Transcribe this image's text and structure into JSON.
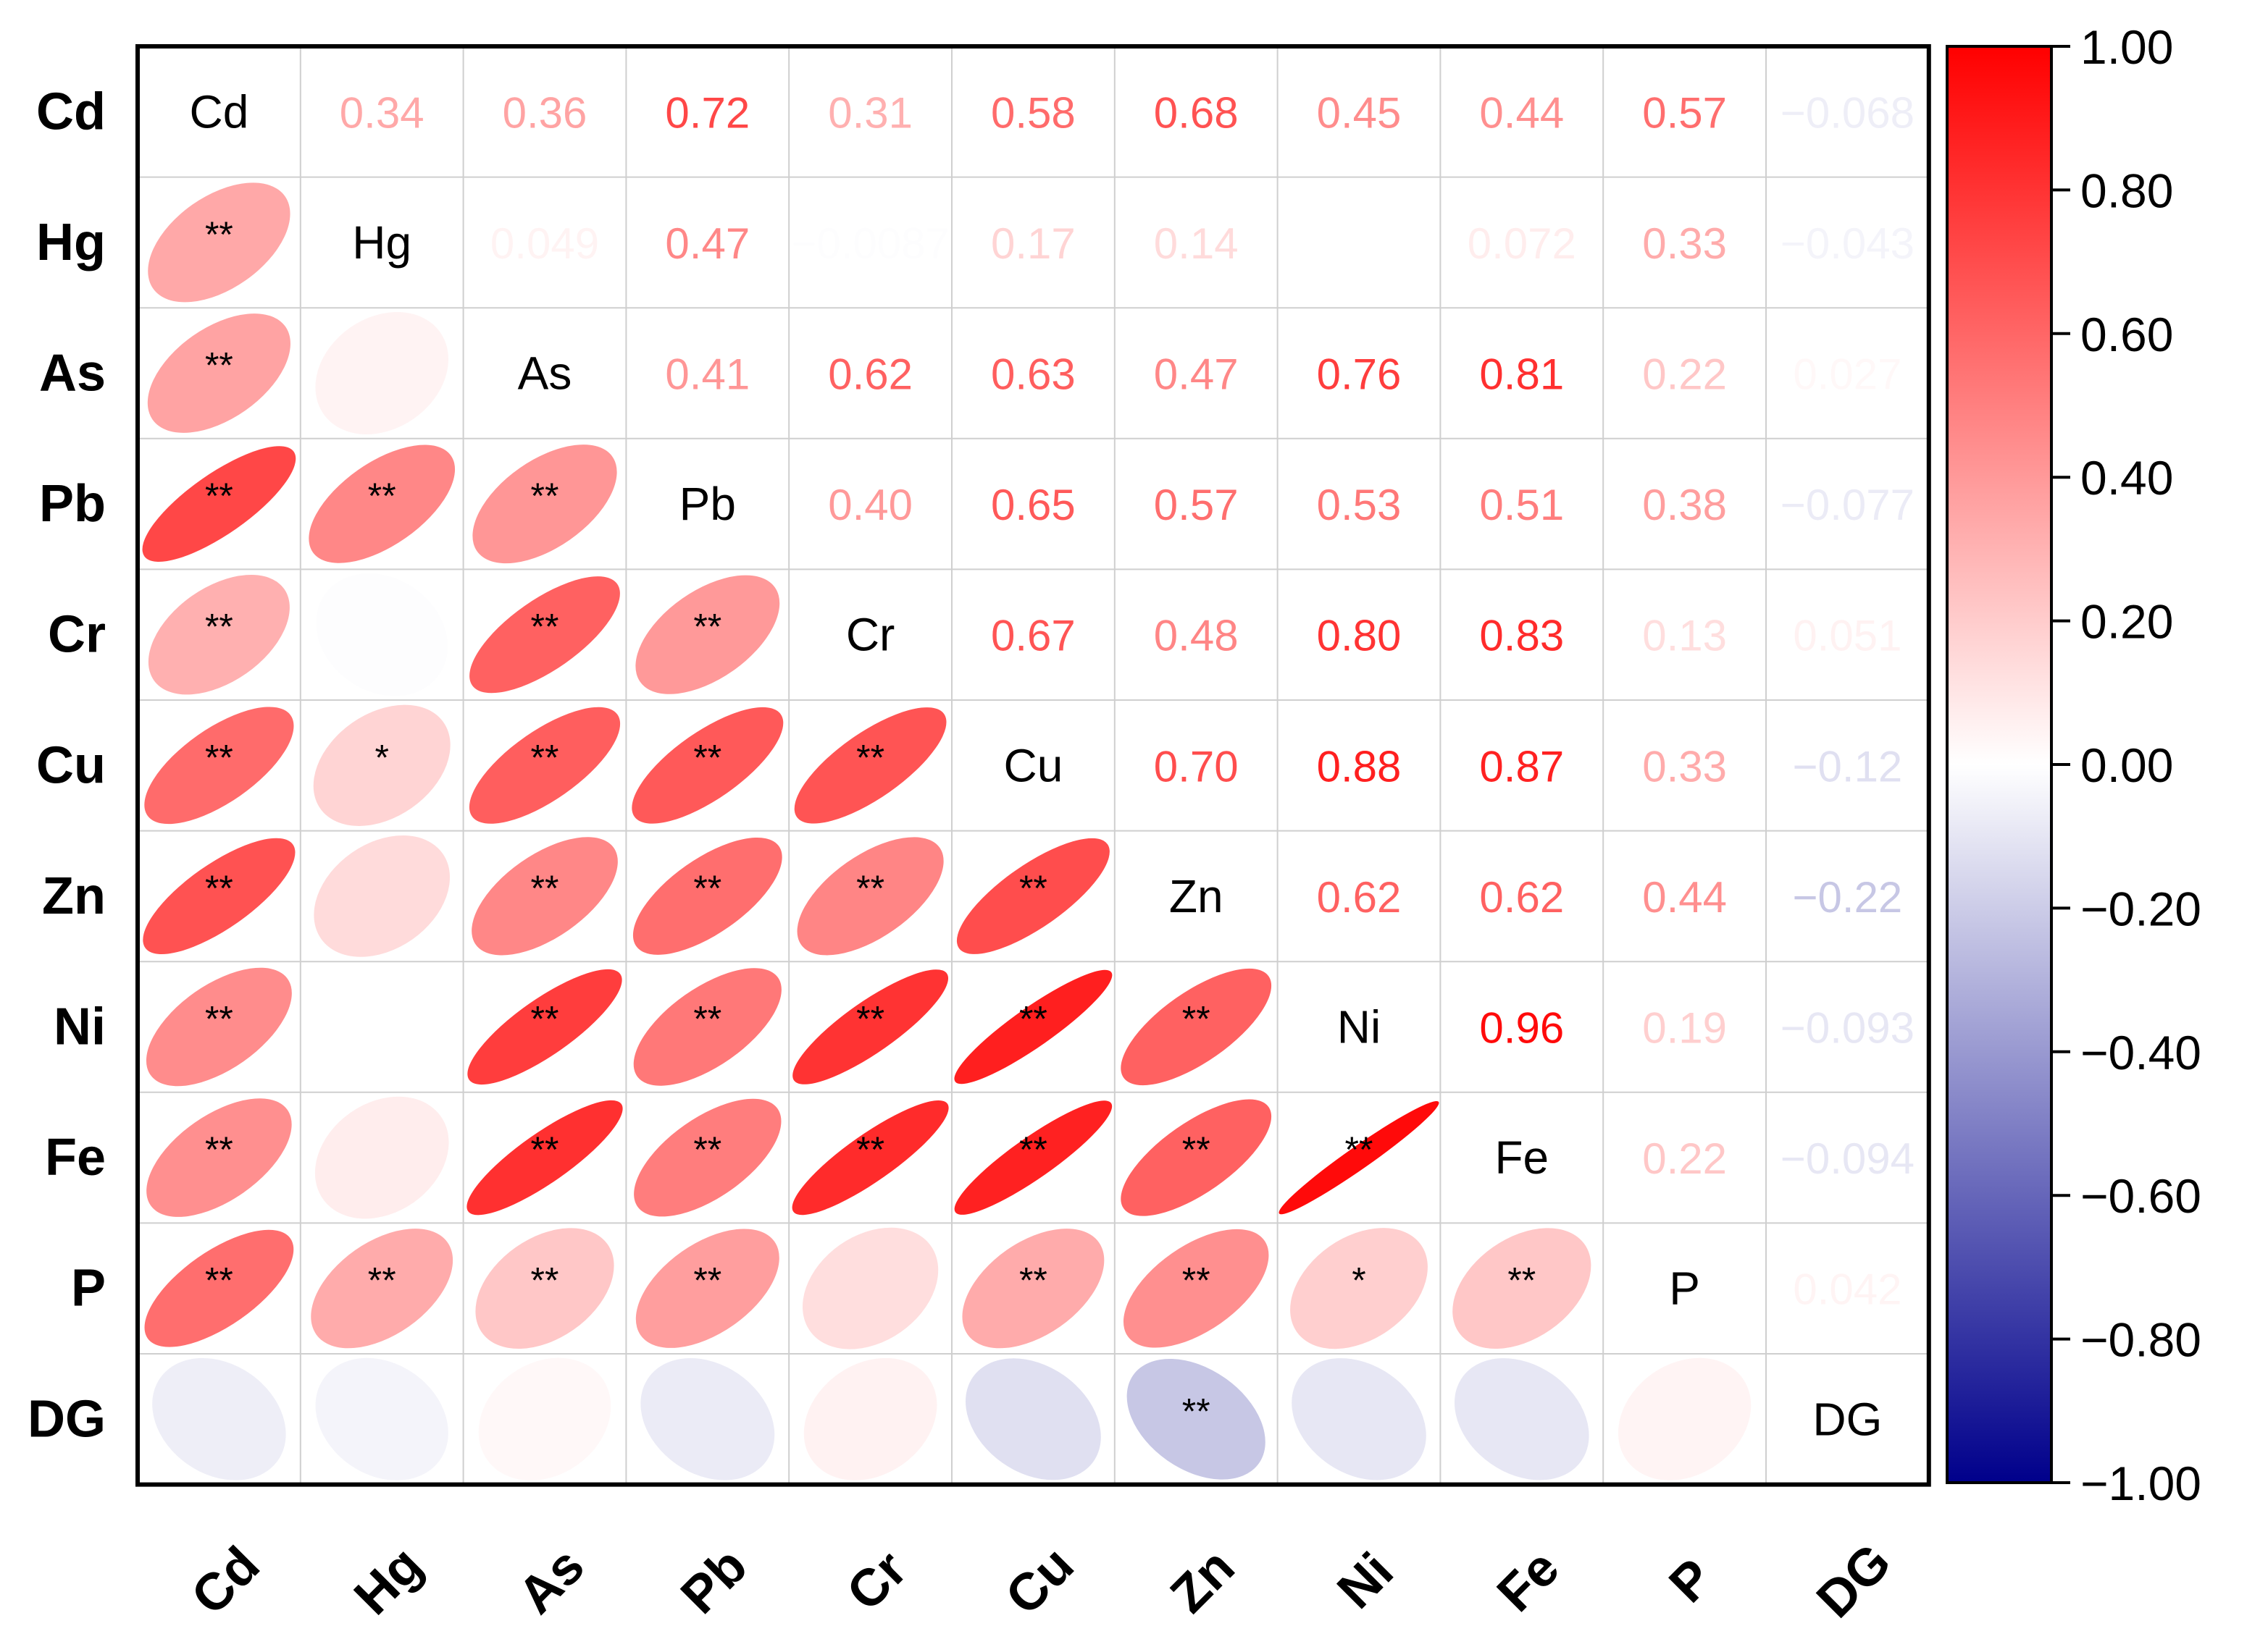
{
  "chart_data": {
    "type": "heatmap",
    "variables": [
      "Cd",
      "Hg",
      "As",
      "Pb",
      "Cr",
      "Cu",
      "Zn",
      "Ni",
      "Fe",
      "P",
      "DG"
    ],
    "matrix": [
      [
        1,
        0.34,
        0.36,
        0.72,
        0.31,
        0.58,
        0.68,
        0.45,
        0.44,
        0.57,
        -0.068
      ],
      [
        0.34,
        1,
        0.049,
        0.47,
        -0.0087,
        0.17,
        0.14,
        0,
        0.072,
        0.33,
        -0.043
      ],
      [
        0.36,
        0.049,
        1,
        0.41,
        0.62,
        0.63,
        0.47,
        0.76,
        0.81,
        0.22,
        0.027
      ],
      [
        0.72,
        0.47,
        0.41,
        1,
        0.4,
        0.65,
        0.57,
        0.53,
        0.51,
        0.38,
        -0.077
      ],
      [
        0.31,
        -0.0087,
        0.62,
        0.4,
        1,
        0.67,
        0.48,
        0.8,
        0.83,
        0.13,
        0.051
      ],
      [
        0.58,
        0.17,
        0.63,
        0.65,
        0.67,
        1,
        0.7,
        0.88,
        0.87,
        0.33,
        -0.12
      ],
      [
        0.68,
        0.14,
        0.47,
        0.57,
        0.48,
        0.7,
        1,
        0.62,
        0.62,
        0.44,
        -0.22
      ],
      [
        0.45,
        0,
        0.76,
        0.53,
        0.8,
        0.88,
        0.62,
        1,
        0.96,
        0.19,
        -0.093
      ],
      [
        0.44,
        0.072,
        0.81,
        0.51,
        0.83,
        0.87,
        0.62,
        0.96,
        1,
        0.22,
        -0.094
      ],
      [
        0.57,
        0.33,
        0.22,
        0.38,
        0.13,
        0.33,
        0.44,
        0.19,
        0.22,
        1,
        0.042
      ],
      [
        -0.068,
        -0.043,
        0.027,
        -0.077,
        0.051,
        -0.12,
        -0.22,
        -0.093,
        -0.094,
        0.042,
        1
      ]
    ],
    "upper_labels": [
      [
        "",
        "0.34",
        "0.36",
        "0.72",
        "0.31",
        "0.58",
        "0.68",
        "0.45",
        "0.44",
        "0.57",
        "−0.068"
      ],
      [
        "",
        "",
        "0.049",
        "0.47",
        "−0.0087",
        "0.17",
        "0.14",
        "",
        "0.072",
        "0.33",
        "−0.043"
      ],
      [
        "",
        "",
        "",
        "0.41",
        "0.62",
        "0.63",
        "0.47",
        "0.76",
        "0.81",
        "0.22",
        "0.027"
      ],
      [
        "",
        "",
        "",
        "",
        "0.40",
        "0.65",
        "0.57",
        "0.53",
        "0.51",
        "0.38",
        "−0.077"
      ],
      [
        "",
        "",
        "",
        "",
        "",
        "0.67",
        "0.48",
        "0.80",
        "0.83",
        "0.13",
        "0.051"
      ],
      [
        "",
        "",
        "",
        "",
        "",
        "",
        "0.70",
        "0.88",
        "0.87",
        "0.33",
        "−0.12"
      ],
      [
        "",
        "",
        "",
        "",
        "",
        "",
        "",
        "0.62",
        "0.62",
        "0.44",
        "−0.22"
      ],
      [
        "",
        "",
        "",
        "",
        "",
        "",
        "",
        "",
        "0.96",
        "0.19",
        "−0.093"
      ],
      [
        "",
        "",
        "",
        "",
        "",
        "",
        "",
        "",
        "",
        "0.22",
        "−0.094"
      ],
      [
        "",
        "",
        "",
        "",
        "",
        "",
        "",
        "",
        "",
        "",
        "0.042"
      ],
      [
        "",
        "",
        "",
        "",
        "",
        "",
        "",
        "",
        "",
        "",
        ""
      ]
    ],
    "significance": [
      [
        "",
        "",
        "",
        "",
        "",
        "",
        "",
        "",
        "",
        "",
        ""
      ],
      [
        "**",
        "",
        "",
        "",
        "",
        "",
        "",
        "",
        "",
        "",
        ""
      ],
      [
        "**",
        "",
        "",
        "",
        "",
        "",
        "",
        "",
        "",
        "",
        ""
      ],
      [
        "**",
        "**",
        "**",
        "",
        "",
        "",
        "",
        "",
        "",
        "",
        ""
      ],
      [
        "**",
        "",
        "**",
        "**",
        "",
        "",
        "",
        "",
        "",
        "",
        ""
      ],
      [
        "**",
        "*",
        "**",
        "**",
        "**",
        "",
        "",
        "",
        "",
        "",
        ""
      ],
      [
        "**",
        "",
        "**",
        "**",
        "**",
        "**",
        "",
        "",
        "",
        "",
        ""
      ],
      [
        "**",
        "",
        "**",
        "**",
        "**",
        "**",
        "**",
        "",
        "",
        "",
        ""
      ],
      [
        "**",
        "",
        "**",
        "**",
        "**",
        "**",
        "**",
        "**",
        "",
        "",
        ""
      ],
      [
        "**",
        "**",
        "**",
        "**",
        "",
        "**",
        "**",
        "*",
        "**",
        "",
        ""
      ],
      [
        "",
        "",
        "",
        "",
        "",
        "",
        "**",
        "",
        "",
        "",
        ""
      ]
    ],
    "colorbar": {
      "min": -1.0,
      "max": 1.0,
      "ticks": [
        "1.00",
        "0.80",
        "0.60",
        "0.40",
        "0.20",
        "0.00",
        "−0.20",
        "−0.40",
        "−0.60",
        "−0.80",
        "−1.00"
      ],
      "colors": {
        "negative": "#00008B",
        "zero": "#FFFFFF",
        "positive": "#FF0000"
      }
    },
    "layout": {
      "lower": "ellipse",
      "upper": "number",
      "diagonal": "label"
    }
  }
}
